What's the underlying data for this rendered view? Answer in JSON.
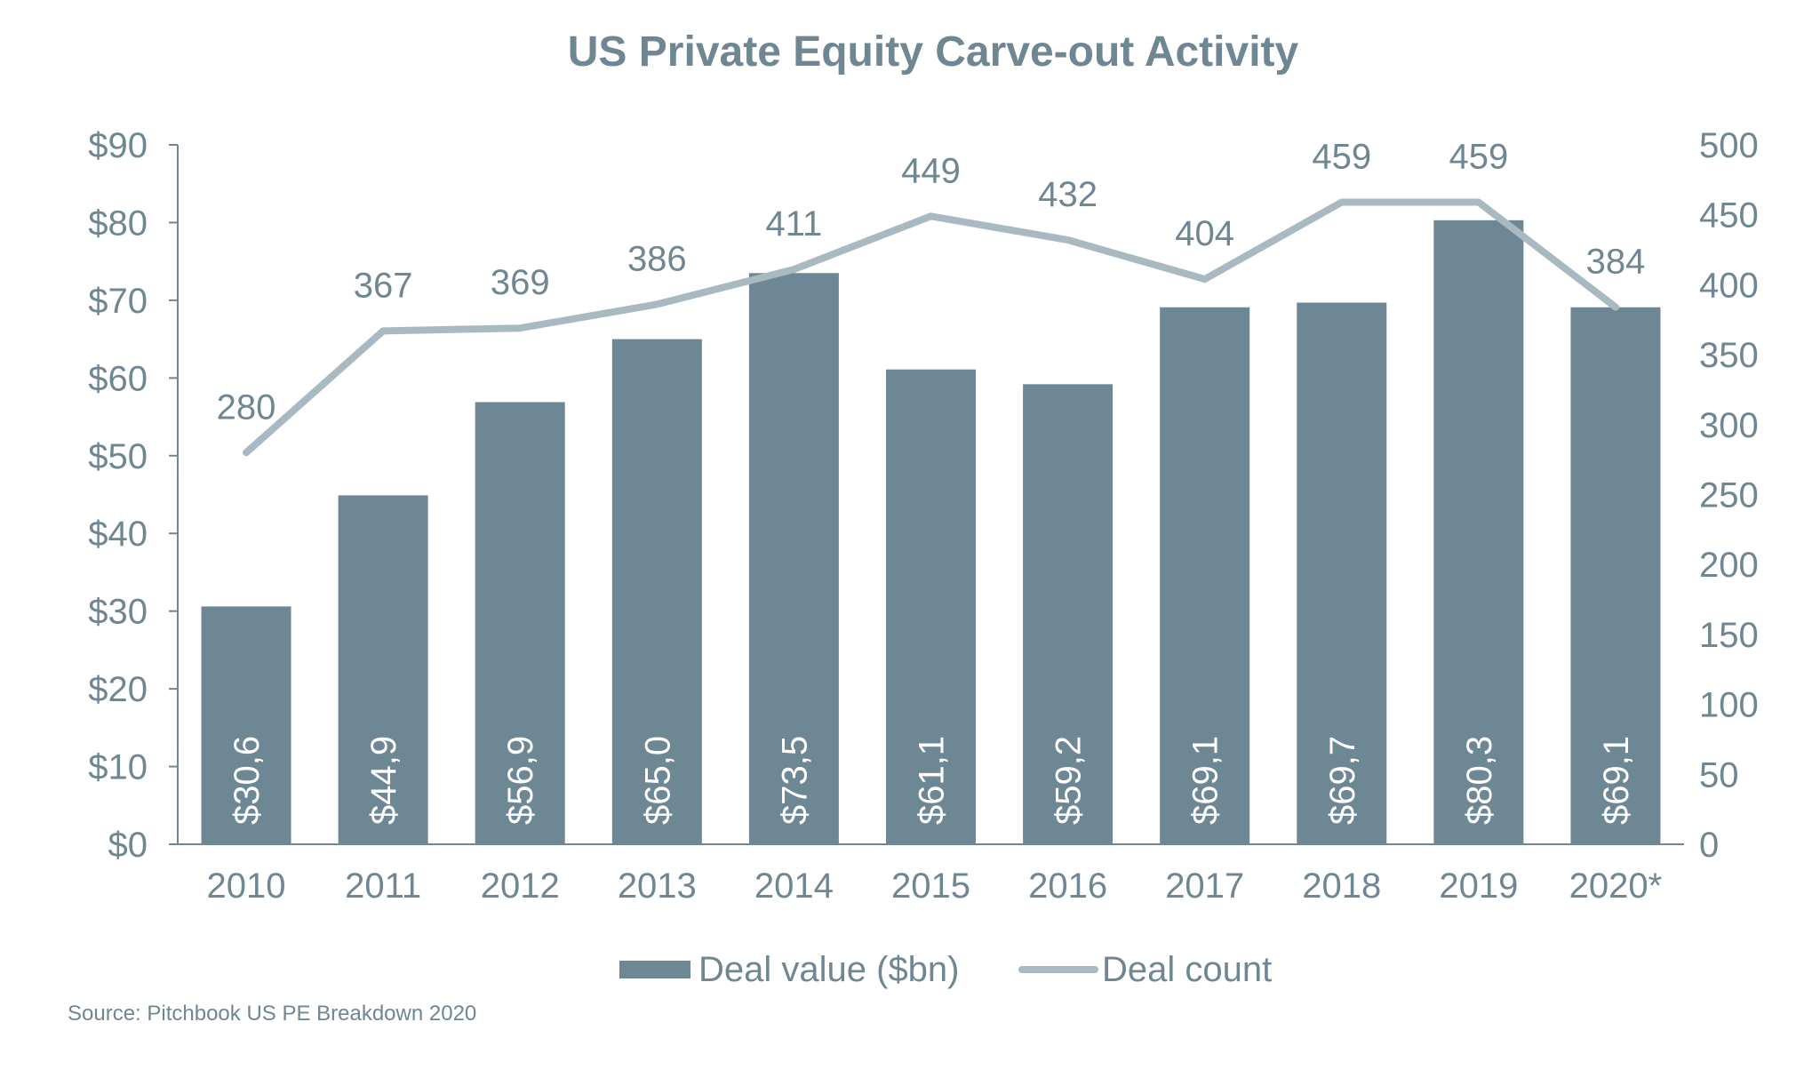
{
  "chart_data": {
    "type": "bar+line",
    "title": "US Private Equity Carve-out Activity",
    "categories": [
      "2010",
      "2011",
      "2012",
      "2013",
      "2014",
      "2015",
      "2016",
      "2017",
      "2018",
      "2019",
      "2020*"
    ],
    "series": [
      {
        "name": "Deal value ($bn)",
        "type": "bar",
        "axis": "left",
        "values": [
          30.6,
          44.9,
          56.9,
          65.0,
          73.5,
          61.1,
          59.2,
          69.1,
          69.7,
          80.3,
          69.1
        ],
        "labels": [
          "$30,6",
          "$44,9",
          "$56,9",
          "$65,0",
          "$73,5",
          "$61,1",
          "$59,2",
          "$69,1",
          "$69,7",
          "$80,3",
          "$69,1"
        ]
      },
      {
        "name": "Deal count",
        "type": "line",
        "axis": "right",
        "values": [
          280,
          367,
          369,
          386,
          411,
          449,
          432,
          404,
          459,
          459,
          384
        ],
        "labels": [
          "280",
          "367",
          "369",
          "386",
          "411",
          "449",
          "432",
          "404",
          "459",
          "459",
          "384"
        ]
      }
    ],
    "left_axis": {
      "range": [
        0,
        90
      ],
      "ticks": [
        0,
        10,
        20,
        30,
        40,
        50,
        60,
        70,
        80,
        90
      ],
      "tick_labels": [
        "$0",
        "$10",
        "$20",
        "$30",
        "$40",
        "$50",
        "$60",
        "$70",
        "$80",
        "$90"
      ]
    },
    "right_axis": {
      "range": [
        0,
        500
      ],
      "ticks": [
        0,
        50,
        100,
        150,
        200,
        250,
        300,
        350,
        400,
        450,
        500
      ],
      "tick_labels": [
        "0",
        "50",
        "100",
        "150",
        "200",
        "250",
        "300",
        "350",
        "400",
        "450",
        "500"
      ]
    },
    "legend": {
      "placement": "bottom-center",
      "entries": [
        "Deal value ($bn)",
        "Deal count"
      ]
    },
    "grid": false,
    "colors": {
      "bar": "#6e8794",
      "line": "#a9b9c1",
      "text": "#6f8693",
      "axis": "#6f8693",
      "bar_label": "#ffffff"
    }
  },
  "source": "Source: Pitchbook US PE Breakdown 2020"
}
